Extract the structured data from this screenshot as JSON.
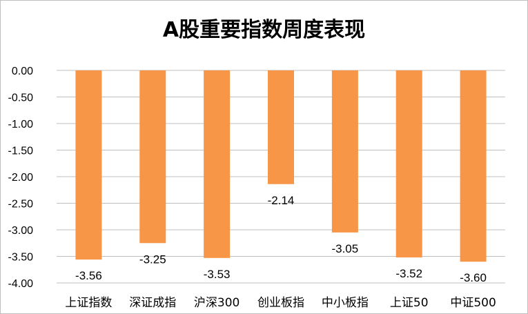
{
  "chart_data": {
    "type": "bar",
    "title": "A股重要指数周度表现",
    "categories": [
      "上证指数",
      "深证成指",
      "沪深300",
      "创业板指",
      "中小板指",
      "上证50",
      "中证500"
    ],
    "values": [
      -3.56,
      -3.25,
      -3.53,
      -2.14,
      -3.05,
      -3.52,
      -3.6
    ],
    "data_labels": [
      "-3.56",
      "-3.25",
      "-3.53",
      "-2.14",
      "-3.05",
      "-3.52",
      "-3.60"
    ],
    "y_ticks": [
      "0.00",
      "-0.50",
      "-1.00",
      "-1.50",
      "-2.00",
      "-2.50",
      "-3.00",
      "-3.50",
      "-4.00"
    ],
    "ylim": [
      -4.0,
      0.0
    ],
    "grid": true,
    "legend": "none",
    "bar_color": "#F79646",
    "grid_color": "#BFBFBF"
  }
}
